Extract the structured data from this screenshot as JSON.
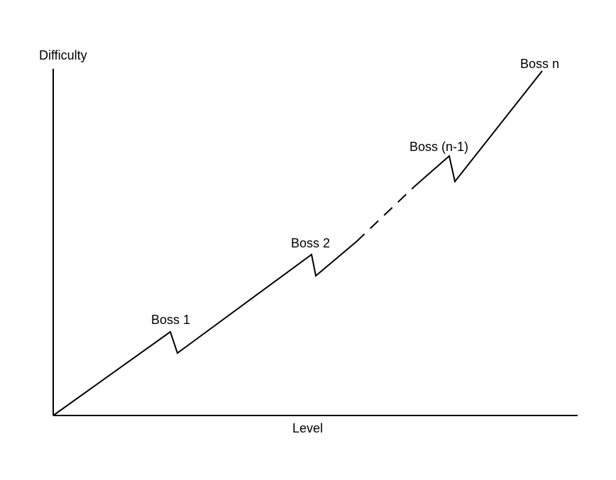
{
  "axes": {
    "y_label": "Difficulty",
    "x_label": "Level"
  },
  "bosses": [
    {
      "label": "Boss 1"
    },
    {
      "label": "Boss 2"
    },
    {
      "label": "Boss (n-1)"
    },
    {
      "label": "Boss n"
    }
  ],
  "colors": {
    "line": "#000000",
    "background": "#ffffff"
  }
}
